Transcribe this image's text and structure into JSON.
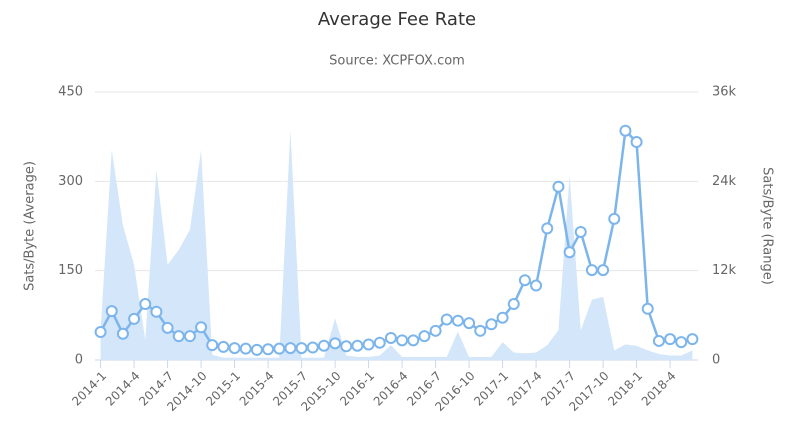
{
  "chart_data": {
    "type": "line",
    "title": "Average Fee Rate",
    "subtitle": "Source: XCPFOX.com",
    "ylabel": "Sats/Byte (Average)",
    "y2label": "Sats/Byte (Range)",
    "categories": [
      "2014-1",
      null,
      null,
      "2014-4",
      null,
      null,
      "2014-7",
      null,
      null,
      "2014-10",
      null,
      null,
      "2015-1",
      null,
      null,
      "2015-4",
      null,
      null,
      "2015-7",
      null,
      null,
      "2015-10",
      null,
      null,
      "2016-1",
      null,
      null,
      "2016-4",
      null,
      null,
      "2016-7",
      null,
      null,
      "2016-10",
      null,
      null,
      "2017-1",
      null,
      null,
      "2017-4",
      null,
      null,
      "2017-7",
      null,
      null,
      "2017-10",
      null,
      null,
      "2018-1",
      null,
      null,
      "2018-4",
      null,
      null
    ],
    "ylim": [
      0,
      450
    ],
    "yticks": [
      0,
      150,
      300,
      450
    ],
    "y2lim": [
      0,
      36000
    ],
    "y2ticks": [
      {
        "value": 0,
        "label": "0"
      },
      {
        "value": 12000,
        "label": "12k"
      },
      {
        "value": 24000,
        "label": "24k"
      },
      {
        "value": 36000,
        "label": "36k"
      }
    ],
    "grid": true,
    "series": [
      {
        "type": "area",
        "axis": "y2",
        "color": "#d4e6f9",
        "values": [
          4000,
          28200,
          18100,
          12800,
          2700,
          25500,
          12800,
          14800,
          17500,
          28200,
          700,
          300,
          300,
          300,
          300,
          300,
          300,
          30900,
          300,
          300,
          300,
          5600,
          600,
          400,
          400,
          600,
          2000,
          400,
          400,
          400,
          400,
          400,
          3800,
          400,
          400,
          400,
          2400,
          1000,
          900,
          1000,
          2000,
          4000,
          24800,
          4000,
          8100,
          8500,
          1300,
          2100,
          1900,
          1300,
          800,
          600,
          600,
          1300
        ]
      },
      {
        "type": "line",
        "color": "#7cb5ec",
        "values": [
          47,
          82,
          44,
          69,
          94,
          81,
          54,
          40,
          40,
          55,
          25,
          22,
          20,
          19,
          17,
          18,
          19,
          20,
          20,
          21,
          24,
          28,
          23,
          24,
          26,
          29,
          37,
          33,
          33,
          40,
          49,
          68,
          66,
          62,
          49,
          60,
          71,
          94,
          134,
          125,
          221,
          291,
          181,
          215,
          151,
          151,
          237,
          385,
          366,
          86,
          32,
          35,
          30,
          35
        ]
      }
    ]
  }
}
